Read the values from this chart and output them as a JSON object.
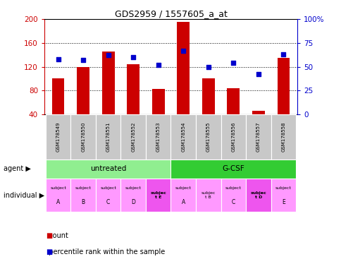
{
  "title": "GDS2959 / 1557605_a_at",
  "samples": [
    "GSM178549",
    "GSM178550",
    "GSM178551",
    "GSM178552",
    "GSM178553",
    "GSM178554",
    "GSM178555",
    "GSM178556",
    "GSM178557",
    "GSM178558"
  ],
  "counts": [
    100,
    120,
    145,
    124,
    83,
    195,
    100,
    84,
    46,
    135
  ],
  "percentile_ranks": [
    58,
    57,
    62,
    60,
    52,
    67,
    50,
    54,
    42,
    63
  ],
  "ylim_left": [
    40,
    200
  ],
  "ylim_right": [
    0,
    100
  ],
  "yticks_left": [
    40,
    80,
    120,
    160,
    200
  ],
  "yticks_right": [
    0,
    25,
    50,
    75,
    100
  ],
  "agent_groups": [
    {
      "label": "untreated",
      "start": 0,
      "end": 5,
      "color": "#90EE90"
    },
    {
      "label": "G-CSF",
      "start": 5,
      "end": 10,
      "color": "#33CC33"
    }
  ],
  "indiv_labels": [
    [
      "subject",
      "A"
    ],
    [
      "subject",
      "B"
    ],
    [
      "subject",
      "C"
    ],
    [
      "subject",
      "D"
    ],
    [
      "subjec\nt E",
      ""
    ],
    [
      "subject",
      "A"
    ],
    [
      "subjec\nt B",
      ""
    ],
    [
      "subject",
      "C"
    ],
    [
      "subjec\nt D",
      ""
    ],
    [
      "subject",
      "E"
    ]
  ],
  "indiv_bold": [
    false,
    false,
    false,
    false,
    true,
    false,
    false,
    false,
    true,
    false
  ],
  "indiv_colors": [
    "#FF99FF",
    "#FF99FF",
    "#FF99FF",
    "#FF99FF",
    "#EE55EE",
    "#FF99FF",
    "#FF99FF",
    "#FF99FF",
    "#EE55EE",
    "#FF99FF"
  ],
  "bar_color": "#CC0000",
  "dot_color": "#0000CC",
  "bar_width": 0.5,
  "left_axis_color": "#CC0000",
  "right_axis_color": "#0000CC",
  "gsm_bg_color": "#C8C8C8",
  "gsm_border_color": "white"
}
